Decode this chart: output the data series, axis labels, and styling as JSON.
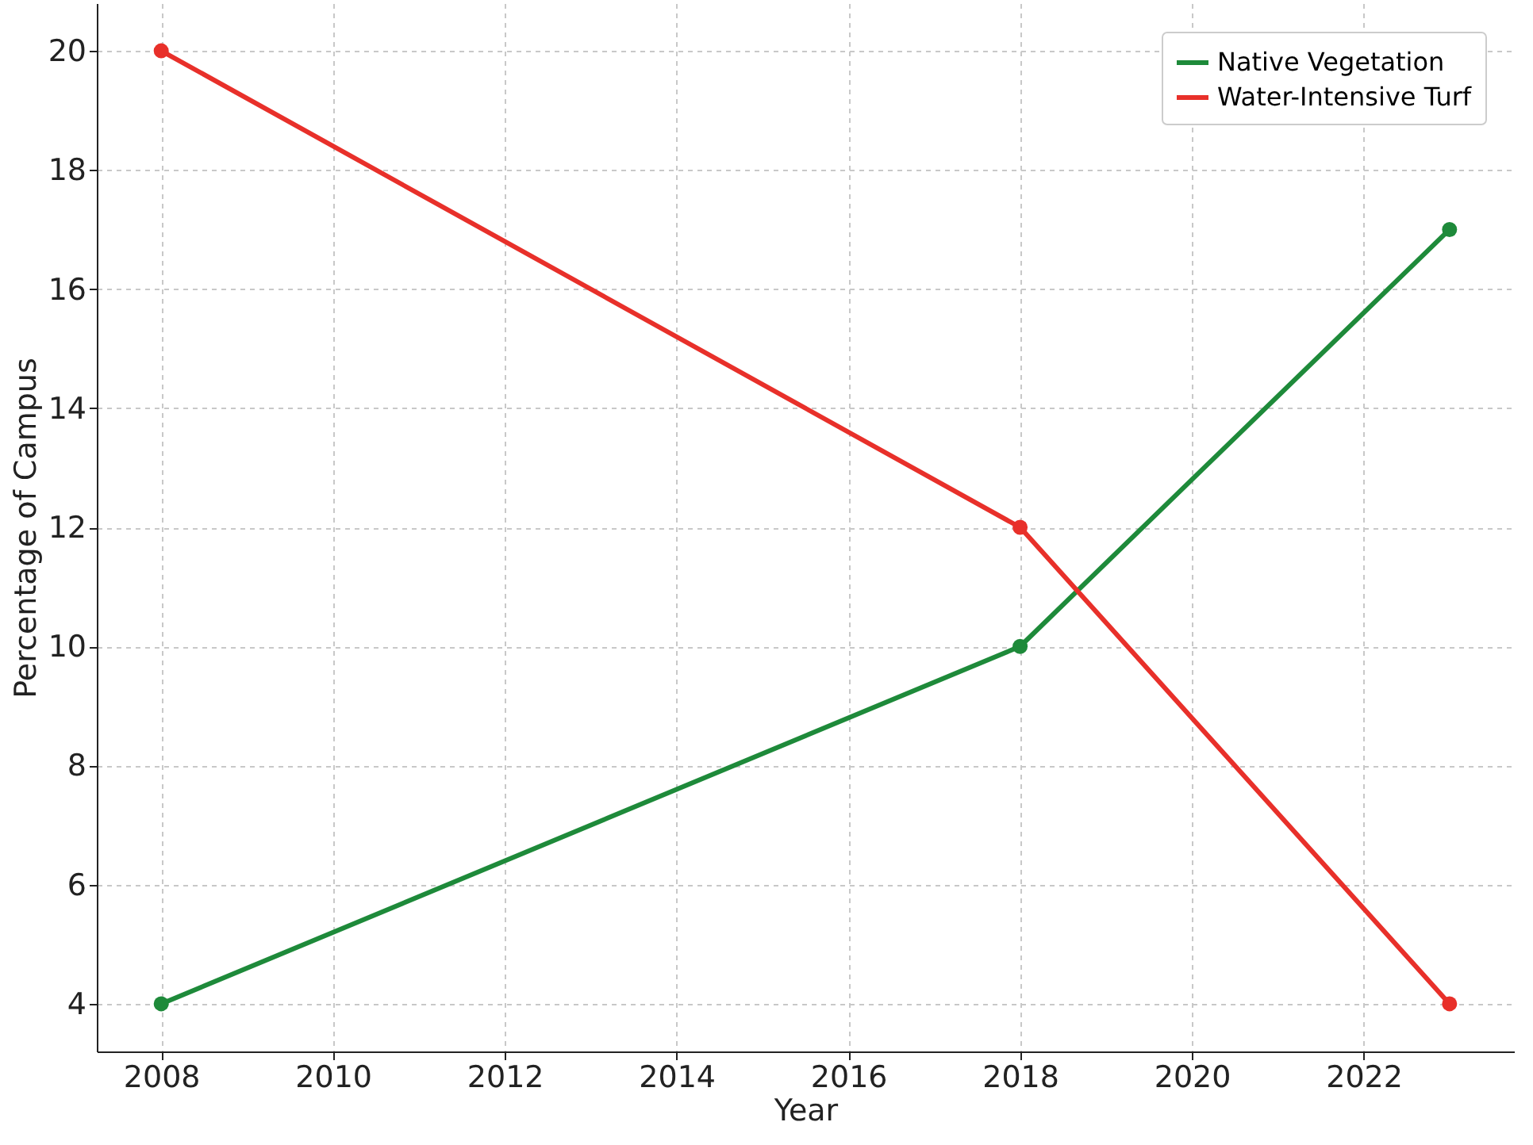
{
  "chart_data": {
    "type": "line",
    "xlabel": "Year",
    "ylabel": "Percentage of Campus",
    "x": [
      2008,
      2018,
      2023
    ],
    "series": [
      {
        "name": "Native Vegetation",
        "color": "#1e8a3a",
        "values": [
          4,
          10,
          17
        ]
      },
      {
        "name": "Water-Intensive Turf",
        "color": "#e8302a",
        "values": [
          20,
          12,
          4
        ]
      }
    ],
    "xlim": [
      2007.25,
      2023.75
    ],
    "xticks": [
      2008,
      2010,
      2012,
      2014,
      2016,
      2018,
      2020,
      2022
    ],
    "ylim": [
      3.2,
      20.8
    ],
    "yticks": [
      4,
      6,
      8,
      10,
      12,
      14,
      16,
      18,
      20
    ],
    "grid": true,
    "legend": "top right",
    "marker": "circle",
    "line_style": "solid"
  }
}
